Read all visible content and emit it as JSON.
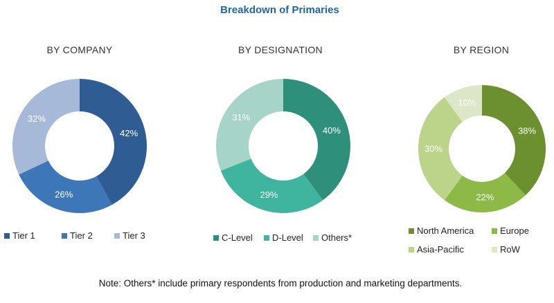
{
  "title": "Breakdown of Primaries",
  "note": "Note: Others* include primary respondents from production and marketing departments.",
  "chart_data": [
    {
      "type": "pie",
      "title": "BY COMPANY",
      "categories": [
        "Tier 1",
        "Tier 2",
        "Tier 3"
      ],
      "values": [
        42,
        26,
        32
      ],
      "labels": [
        "42%",
        "26%",
        "32%"
      ],
      "colors": [
        "#2f5d93",
        "#3e77b8",
        "#a7b9d8"
      ],
      "label_colors": [
        "#ffffff",
        "#ffffff",
        "#ffffff"
      ]
    },
    {
      "type": "pie",
      "title": "BY DESIGNATION",
      "categories": [
        "C-Level",
        "D-Level",
        "Others*"
      ],
      "values": [
        40,
        29,
        31
      ],
      "labels": [
        "40%",
        "29%",
        "31%"
      ],
      "colors": [
        "#2e8f7a",
        "#3fb49f",
        "#a7d4c9"
      ],
      "label_colors": [
        "#ffffff",
        "#ffffff",
        "#ffffff"
      ]
    },
    {
      "type": "pie",
      "title": "BY REGION",
      "categories": [
        "North America",
        "Europe",
        "Asia-Pacific",
        "RoW"
      ],
      "values": [
        38,
        22,
        30,
        10
      ],
      "labels": [
        "38%",
        "22%",
        "30%",
        "10%"
      ],
      "colors": [
        "#6c8f2f",
        "#8db946",
        "#bcd489",
        "#dbe7c6"
      ],
      "label_colors": [
        "#ffffff",
        "#ffffff",
        "#ffffff",
        "#ffffff"
      ]
    }
  ]
}
